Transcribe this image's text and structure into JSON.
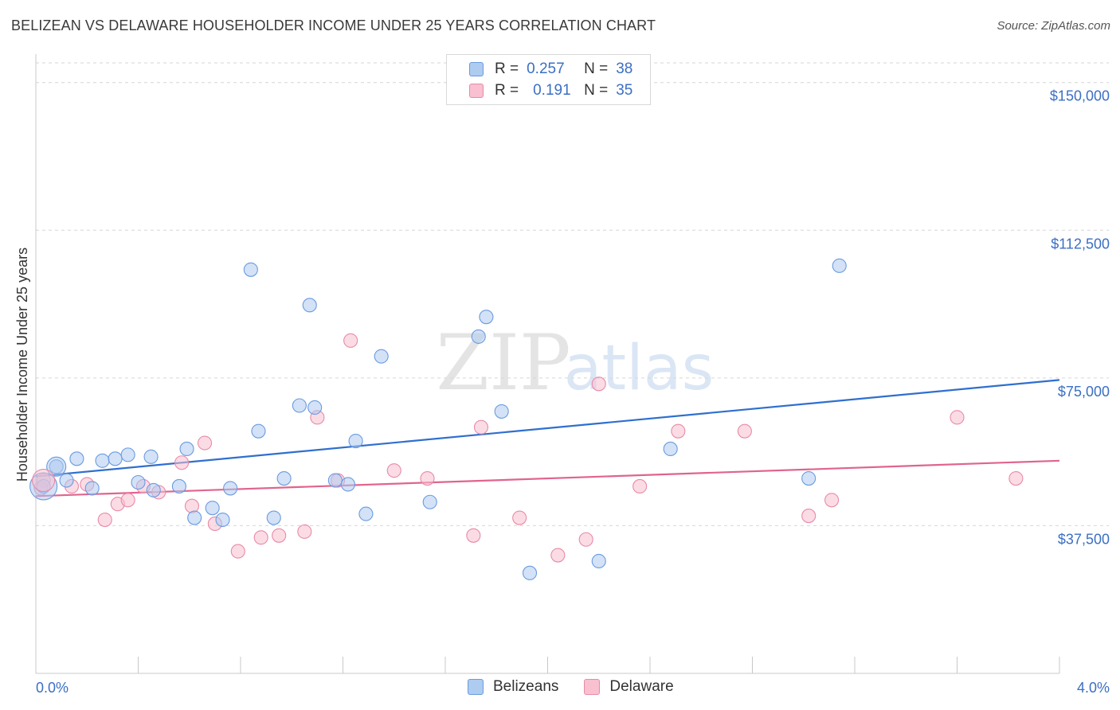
{
  "title": "BELIZEAN VS DELAWARE HOUSEHOLDER INCOME UNDER 25 YEARS CORRELATION CHART",
  "source": "Source: ZipAtlas.com",
  "watermark": {
    "zip": "ZIP",
    "atlas": "atlas"
  },
  "legend": {
    "r_label": "R =",
    "n_label": "N =",
    "items": [
      {
        "r": "0.257",
        "n": "38"
      },
      {
        "r": "0.191",
        "n": "35"
      }
    ]
  },
  "colors": {
    "belizeans_fill": "#aecbf0",
    "belizeans_stroke": "#6a9be0",
    "belizeans_line": "#2f6fcf",
    "delaware_fill": "#f8c0d0",
    "delaware_stroke": "#e88aa8",
    "delaware_line": "#e0648e",
    "axis_text": "#3b6fc4",
    "grid": "#d6d6d6"
  },
  "chart_data": {
    "type": "scatter",
    "title": "BELIZEAN VS DELAWARE HOUSEHOLDER INCOME UNDER 25 YEARS CORRELATION CHART",
    "xlabel": "",
    "ylabel": "Householder Income Under 25 years",
    "xlim": [
      0.0,
      4.0
    ],
    "ylim": [
      0,
      155000
    ],
    "x_tick_labels": [
      "0.0%",
      "4.0%"
    ],
    "y_ticks": [
      37500,
      75000,
      112500,
      150000
    ],
    "y_tick_labels": [
      "$37,500",
      "$75,000",
      "$112,500",
      "$150,000"
    ],
    "grid": true,
    "legend_position": "top-center",
    "series": [
      {
        "name": "Belizeans",
        "points": [
          [
            0.03,
            47500
          ],
          [
            0.08,
            52500
          ],
          [
            0.12,
            49000
          ],
          [
            0.16,
            54500
          ],
          [
            0.22,
            47000
          ],
          [
            0.26,
            54000
          ],
          [
            0.31,
            54500
          ],
          [
            0.36,
            55500
          ],
          [
            0.4,
            48500
          ],
          [
            0.45,
            55000
          ],
          [
            0.46,
            46500
          ],
          [
            0.56,
            47500
          ],
          [
            0.59,
            57000
          ],
          [
            0.62,
            39500
          ],
          [
            0.69,
            42000
          ],
          [
            0.73,
            39000
          ],
          [
            0.76,
            47000
          ],
          [
            0.84,
            102500
          ],
          [
            0.87,
            61500
          ],
          [
            0.93,
            39500
          ],
          [
            0.97,
            49500
          ],
          [
            1.03,
            68000
          ],
          [
            1.07,
            93500
          ],
          [
            1.09,
            67500
          ],
          [
            1.17,
            49000
          ],
          [
            1.22,
            48000
          ],
          [
            1.25,
            59000
          ],
          [
            1.29,
            40500
          ],
          [
            1.35,
            80500
          ],
          [
            1.54,
            43500
          ],
          [
            1.73,
            85500
          ],
          [
            1.76,
            90500
          ],
          [
            1.82,
            66500
          ],
          [
            1.93,
            25500
          ],
          [
            2.2,
            28500
          ],
          [
            2.48,
            57000
          ],
          [
            3.02,
            49500
          ],
          [
            3.14,
            103500
          ]
        ],
        "large_points": [
          [
            0.08,
            52500
          ],
          [
            0.03,
            47500
          ]
        ]
      },
      {
        "name": "Delaware",
        "points": [
          [
            0.03,
            49000
          ],
          [
            0.14,
            47500
          ],
          [
            0.2,
            48000
          ],
          [
            0.27,
            39000
          ],
          [
            0.32,
            43000
          ],
          [
            0.36,
            44000
          ],
          [
            0.42,
            47500
          ],
          [
            0.48,
            46000
          ],
          [
            0.57,
            53500
          ],
          [
            0.61,
            42500
          ],
          [
            0.66,
            58500
          ],
          [
            0.7,
            38000
          ],
          [
            0.79,
            31000
          ],
          [
            0.88,
            34500
          ],
          [
            0.95,
            35000
          ],
          [
            1.05,
            36000
          ],
          [
            1.1,
            65000
          ],
          [
            1.18,
            49000
          ],
          [
            1.23,
            84500
          ],
          [
            1.4,
            51500
          ],
          [
            1.53,
            49500
          ],
          [
            1.71,
            35000
          ],
          [
            1.74,
            62500
          ],
          [
            1.89,
            39500
          ],
          [
            2.04,
            30000
          ],
          [
            2.15,
            34000
          ],
          [
            2.2,
            73500
          ],
          [
            2.36,
            47500
          ],
          [
            2.51,
            61500
          ],
          [
            2.77,
            61500
          ],
          [
            3.02,
            40000
          ],
          [
            3.11,
            44000
          ],
          [
            3.6,
            65000
          ],
          [
            3.83,
            49500
          ],
          [
            0.02,
            47000
          ]
        ],
        "large_points": [
          [
            0.03,
            49000
          ]
        ]
      }
    ],
    "trendlines": [
      {
        "name": "Belizeans",
        "x": [
          0.0,
          4.0
        ],
        "y": [
          50000,
          74500
        ]
      },
      {
        "name": "Delaware",
        "x": [
          0.0,
          4.0
        ],
        "y": [
          45000,
          54000
        ]
      }
    ]
  },
  "bottom_legend": [
    "Belizeans",
    "Delaware"
  ]
}
